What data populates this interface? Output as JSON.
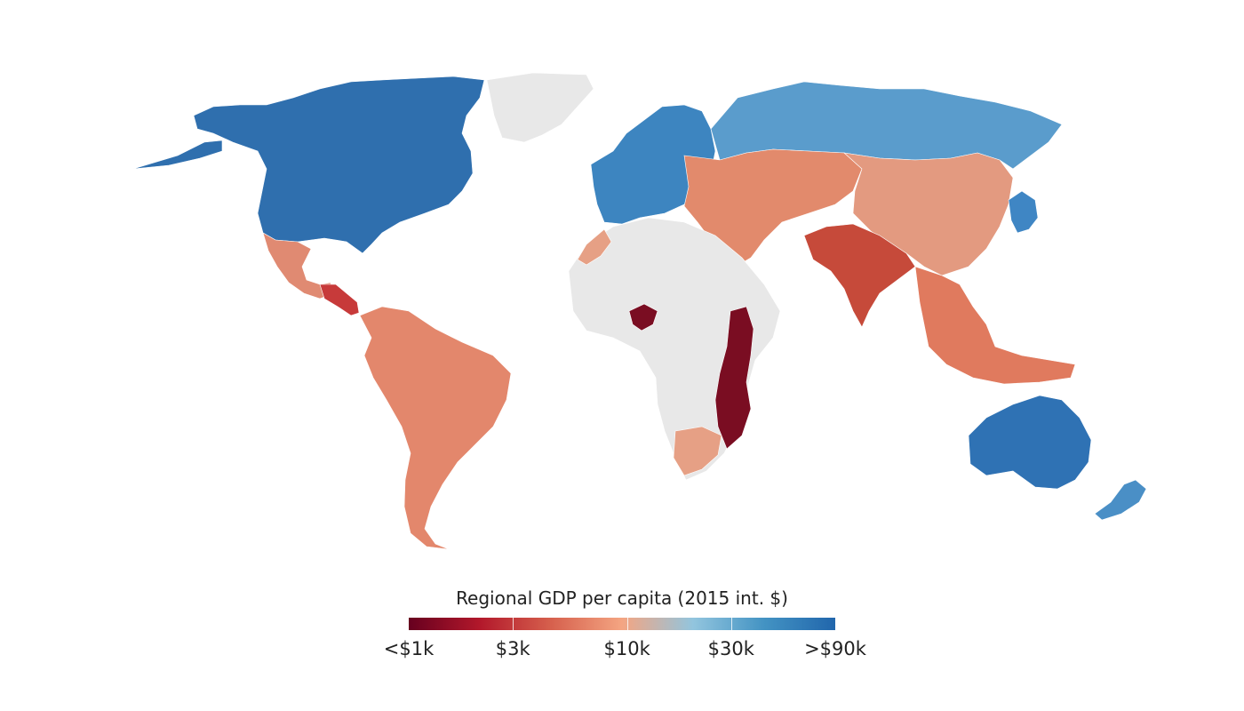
{
  "legend": {
    "title": "Regional GDP per capita (2015 int. $)",
    "ticks": [
      {
        "label": "<$1k",
        "value": 1000
      },
      {
        "label": "$3k",
        "value": 3000
      },
      {
        "label": "$10k",
        "value": 10000
      },
      {
        "label": "$30k",
        "value": 30000
      },
      {
        "label": ">$90k",
        "value": 90000
      }
    ],
    "scale": "log",
    "colors": [
      "#67001f",
      "#b2182b",
      "#d6604d",
      "#f4a582",
      "#92c5de",
      "#4393c3",
      "#2166ac"
    ],
    "no_data_color": "#e8e8e8"
  },
  "regions": [
    {
      "name": "North America",
      "color": "#2f6fae"
    },
    {
      "name": "Greenland",
      "color": "#e8e8e8"
    },
    {
      "name": "Mexico",
      "color": "#e08a72"
    },
    {
      "name": "Central America",
      "color": "#c73a3a"
    },
    {
      "name": "South America",
      "color": "#e3876c"
    },
    {
      "name": "Europe",
      "color": "#3d85c0"
    },
    {
      "name": "Russia",
      "color": "#5a9ccc"
    },
    {
      "name": "Central Asia",
      "color": "#e28a6c"
    },
    {
      "name": "China",
      "color": "#e39a80"
    },
    {
      "name": "South Asia",
      "color": "#c64a3a"
    },
    {
      "name": "Southeast Asia",
      "color": "#e07a5e"
    },
    {
      "name": "Africa",
      "color": "#e8e8e8"
    },
    {
      "name": "East Africa",
      "color": "#7a0d22"
    },
    {
      "name": "Southern Africa",
      "color": "#e6a085"
    },
    {
      "name": "Australia",
      "color": "#2f72b4"
    },
    {
      "name": "New Zealand",
      "color": "#4a8fc6"
    },
    {
      "name": "Japan",
      "color": "#3f86c4"
    }
  ]
}
